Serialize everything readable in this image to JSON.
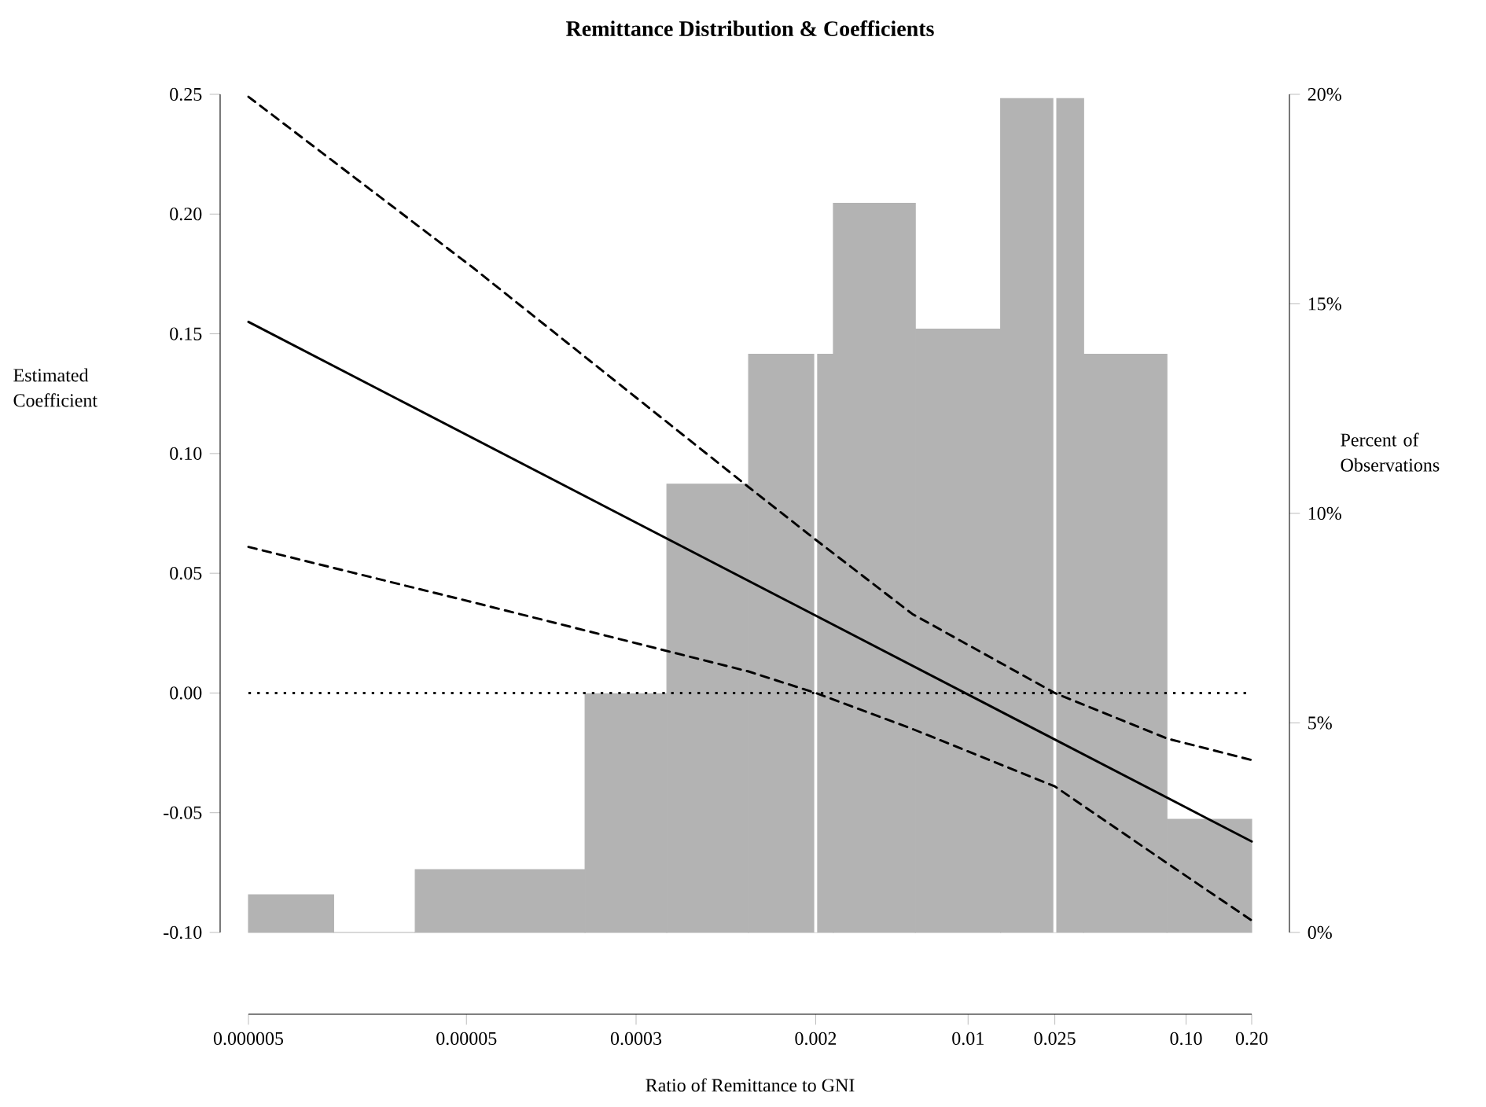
{
  "chart_data": {
    "type": "line",
    "title": "Remittance Distribution & Coefficients",
    "xlabel": "Ratio of Remittance to GNI",
    "ylabel": "Estimated Coefficient",
    "y2label": "Percent of Observations",
    "log": "x",
    "xlim": [
      5e-06,
      0.2
    ],
    "xticks": [
      {
        "value": 5e-06,
        "label": "0.000005"
      },
      {
        "value": 5e-05,
        "label": "0.00005"
      },
      {
        "value": 0.0003,
        "label": "0.0003"
      },
      {
        "value": 0.002,
        "label": "0.002"
      },
      {
        "value": 0.01,
        "label": "0.01"
      },
      {
        "value": 0.025,
        "label": "0.025"
      },
      {
        "value": 0.1,
        "label": "0.10"
      },
      {
        "value": 0.2,
        "label": "0.20"
      }
    ],
    "ylim": [
      -0.1,
      0.25
    ],
    "yticks": [
      {
        "value": -0.1,
        "label": "-0.10"
      },
      {
        "value": -0.05,
        "label": "-0.05"
      },
      {
        "value": 0,
        "label": "0.00"
      },
      {
        "value": 0.05,
        "label": "0.05"
      },
      {
        "value": 0.1,
        "label": "0.10"
      },
      {
        "value": 0.15,
        "label": "0.15"
      },
      {
        "value": 0.2,
        "label": "0.20"
      },
      {
        "value": 0.25,
        "label": "0.25"
      }
    ],
    "y2lim": [
      0,
      20
    ],
    "y2ticks": [
      {
        "value": 0,
        "label": "0%"
      },
      {
        "value": 5,
        "label": "5%"
      },
      {
        "value": 10,
        "label": "10%"
      },
      {
        "value": 15,
        "label": "15%"
      },
      {
        "value": 20,
        "label": "20%"
      }
    ],
    "series": [
      {
        "type": "histogram",
        "axis": "y2",
        "color": "#b3b3b3",
        "bins": [
          5e-06,
          1.23e-05,
          2.91e-05,
          0.000175,
          0.000415,
          0.000984,
          0.00241,
          0.00573,
          0.0141,
          0.0339,
          0.0817,
          0.2
        ],
        "values": [
          0.9,
          0,
          1.5,
          5.7,
          10.7,
          13.8,
          17.4,
          14.4,
          19.9,
          13.8,
          2.7
        ]
      },
      {
        "type": "line",
        "color": "#000000",
        "line_style": "solid",
        "x": [
          5e-06,
          0.2
        ],
        "values": [
          0.155,
          -0.062
        ]
      },
      {
        "type": "line",
        "color": "#000000",
        "line_style": "dashed",
        "x": [
          5e-06,
          5.29e-05,
          0.000984,
          0.002,
          0.00555,
          0.025,
          0.0817,
          0.2
        ],
        "values": [
          0.249,
          0.178,
          0.086,
          0.064,
          0.033,
          0.0,
          -0.019,
          -0.028
        ]
      },
      {
        "type": "line",
        "color": "#000000",
        "line_style": "dashed",
        "x": [
          5e-06,
          5.29e-05,
          0.000984,
          0.002,
          0.00555,
          0.025,
          0.0817,
          0.2
        ],
        "values": [
          0.061,
          0.038,
          0.009,
          0.0,
          -0.015,
          -0.039,
          -0.071,
          -0.095
        ]
      }
    ],
    "ref_lines": [
      {
        "axis": "y",
        "value": 0,
        "color": "#000000",
        "line_style": "dotted"
      },
      {
        "axis": "x",
        "value": 0.002,
        "color": "#ffffff",
        "line_style": "solid"
      },
      {
        "axis": "x",
        "value": 0.025,
        "color": "#ffffff",
        "line_style": "solid"
      }
    ]
  }
}
